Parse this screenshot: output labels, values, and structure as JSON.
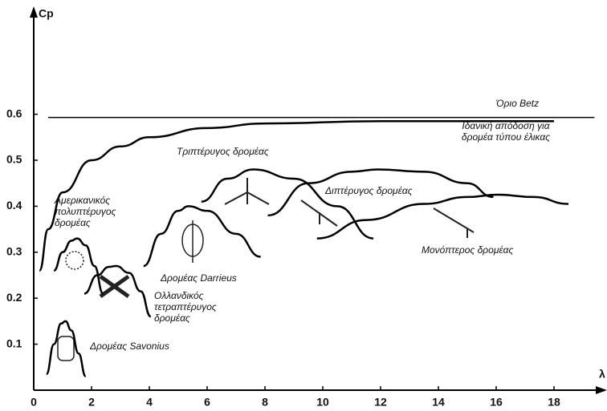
{
  "chart_data": {
    "type": "line",
    "ylabel": "Cp",
    "xlabel": "λ",
    "xlim": [
      0,
      19.8
    ],
    "ylim": [
      0,
      0.8
    ],
    "xticks": [
      0,
      2,
      4,
      6,
      8,
      10,
      12,
      14,
      16,
      18
    ],
    "yticks": [
      0.1,
      0.2,
      0.3,
      0.4,
      0.5,
      0.6
    ],
    "series": [
      {
        "name": "Όριο Betz",
        "color": "#000",
        "x": [
          0.5,
          19.4
        ],
        "values": [
          0.593,
          0.593
        ]
      },
      {
        "name": "Ιδανική απόδοση για δρομέα τύπου έλικας",
        "color": "#000",
        "x": [
          0.2,
          0.5,
          1,
          2,
          3,
          4,
          6,
          8,
          12,
          18
        ],
        "values": [
          0.26,
          0.35,
          0.43,
          0.5,
          0.53,
          0.55,
          0.57,
          0.58,
          0.585,
          0.585
        ]
      },
      {
        "name": "Τριπτέρυγος δρομέας",
        "color": "#000",
        "x": [
          5.8,
          6.7,
          7.6,
          9,
          10.5,
          11.75
        ],
        "values": [
          0.41,
          0.46,
          0.48,
          0.46,
          0.4,
          0.33
        ]
      },
      {
        "name": "Διπτέρυγος δρομέας",
        "color": "#000",
        "x": [
          8.1,
          9.5,
          11,
          11.9,
          13.5,
          15,
          15.9
        ],
        "values": [
          0.38,
          0.45,
          0.475,
          0.48,
          0.475,
          0.45,
          0.42
        ]
      },
      {
        "name": "Μονόπτερος δρομέας",
        "color": "#000",
        "x": [
          9.8,
          11.5,
          13.5,
          15,
          16.05,
          17.3,
          18.5
        ],
        "values": [
          0.33,
          0.37,
          0.405,
          0.42,
          0.425,
          0.42,
          0.405
        ]
      },
      {
        "name": "Δρομέας Darrieus",
        "color": "#000",
        "x": [
          3.8,
          4.4,
          5,
          5.35,
          6,
          7,
          7.85
        ],
        "values": [
          0.27,
          0.34,
          0.39,
          0.4,
          0.39,
          0.34,
          0.29
        ]
      },
      {
        "name": "Αμερικανικός πολυπτέρυγος δρομέας",
        "color": "#000",
        "x": [
          0.7,
          1,
          1.3,
          1.5,
          1.8,
          2.1,
          2.4
        ],
        "values": [
          0.26,
          0.3,
          0.325,
          0.33,
          0.315,
          0.27,
          0.21
        ]
      },
      {
        "name": "Ολλανδικός τετραπτέρυγος δρομέας",
        "color": "#000",
        "x": [
          1.75,
          2.2,
          2.6,
          2.85,
          3.3,
          3.7,
          4.05
        ],
        "values": [
          0.21,
          0.25,
          0.268,
          0.27,
          0.255,
          0.215,
          0.16
        ]
      },
      {
        "name": "Δρομέας Savonius",
        "color": "#000",
        "x": [
          0.44,
          0.7,
          0.95,
          1.1,
          1.3,
          1.55,
          1.8
        ],
        "values": [
          0.035,
          0.1,
          0.145,
          0.15,
          0.13,
          0.08,
          0.03
        ]
      }
    ]
  }
}
